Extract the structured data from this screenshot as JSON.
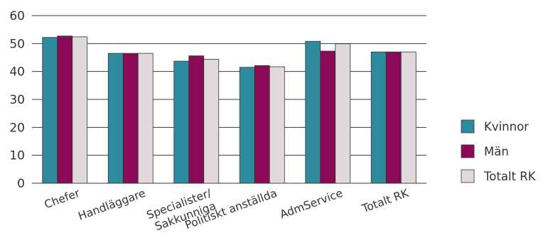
{
  "chart_data": {
    "type": "bar",
    "title": "",
    "xlabel": "",
    "ylabel": "",
    "ylim": [
      0,
      60
    ],
    "yticks": [
      0,
      10,
      20,
      30,
      40,
      50,
      60
    ],
    "grid": true,
    "legend_position": "right",
    "categories": [
      [
        "Chefer"
      ],
      [
        "Handläggare"
      ],
      [
        "Specialister/",
        "Sakkunniga"
      ],
      [
        "Politiskt anställda"
      ],
      [
        "AdmService"
      ],
      [
        "Totalt RK"
      ]
    ],
    "series": [
      {
        "name": "Kvinnor",
        "color": "#2e8b9e",
        "values": [
          52.2,
          46.5,
          43.7,
          41.5,
          50.8,
          47.0
        ]
      },
      {
        "name": "Män",
        "color": "#8b0a57",
        "values": [
          52.7,
          46.5,
          45.6,
          42.1,
          47.3,
          47.0
        ]
      },
      {
        "name": "Totalt RK",
        "color": "#e2d9dc",
        "values": [
          52.4,
          46.5,
          44.4,
          41.7,
          49.9,
          47.0
        ]
      }
    ]
  }
}
